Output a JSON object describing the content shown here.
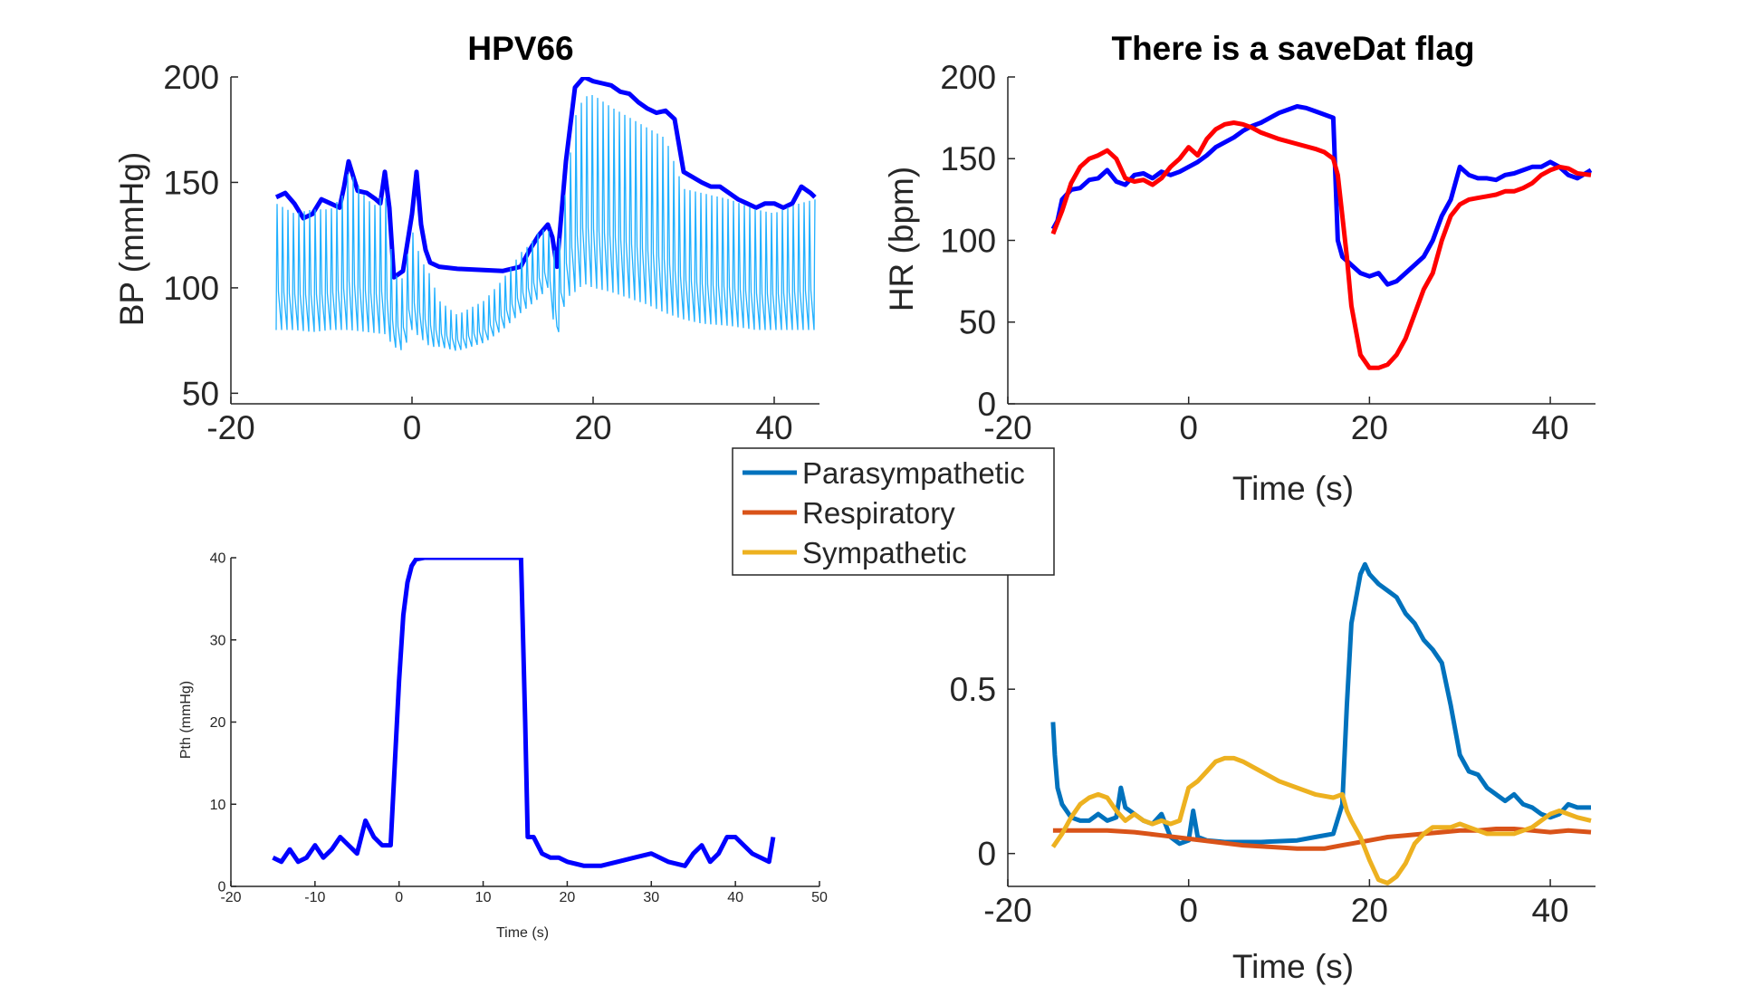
{
  "chart_data": [
    {
      "type": "line",
      "title": "HPV66",
      "xlabel": "",
      "ylabel": "BP (mmHg)",
      "xlim": [
        -20,
        45
      ],
      "ylim": [
        45,
        200
      ],
      "xticks": [
        -20,
        0,
        20,
        40
      ],
      "yticks": [
        50,
        100,
        150,
        200
      ],
      "colors": {
        "envelope": "#0000ff",
        "waveform": "#21b0ff"
      },
      "series": [
        {
          "key": "envelope",
          "x": [
            -15,
            -14,
            -13,
            -12,
            -11,
            -10,
            -9,
            -8,
            -7.5,
            -7,
            -6,
            -5,
            -4,
            -3.5,
            -3,
            -2.5,
            -2,
            -1,
            0,
            0.5,
            1,
            1.5,
            2,
            3,
            5,
            10,
            12,
            13,
            14,
            15,
            15.5,
            16,
            17,
            18,
            19,
            20,
            21,
            22,
            23,
            24,
            25,
            26,
            27,
            28,
            29,
            30,
            32,
            33,
            34,
            35,
            36,
            37,
            38,
            39,
            40,
            41,
            42,
            43,
            44,
            44.5
          ],
          "y": [
            143,
            145,
            140,
            133,
            135,
            142,
            140,
            138,
            148,
            160,
            146,
            145,
            142,
            140,
            155,
            138,
            105,
            108,
            135,
            155,
            130,
            118,
            112,
            110,
            109,
            108,
            110,
            118,
            125,
            130,
            124,
            110,
            160,
            195,
            200,
            198,
            197,
            196,
            193,
            192,
            188,
            185,
            183,
            184,
            180,
            155,
            150,
            148,
            148,
            145,
            142,
            140,
            138,
            140,
            140,
            138,
            140,
            148,
            145,
            143
          ]
        },
        {
          "key": "waveform_upper",
          "x": [
            -15,
            -13,
            -11,
            -9,
            -7.5,
            -7,
            -5,
            -4,
            -3,
            -2,
            -1,
            0,
            1,
            2,
            3,
            5,
            8,
            10,
            12,
            13,
            14,
            15,
            16,
            17,
            18,
            19,
            20,
            22,
            24,
            26,
            28,
            30,
            32,
            35,
            38,
            40,
            42,
            44.5
          ],
          "y": [
            143,
            138,
            140,
            140,
            148,
            160,
            145,
            142,
            150,
            108,
            106,
            130,
            115,
            108,
            95,
            88,
            95,
            105,
            118,
            122,
            128,
            130,
            115,
            150,
            185,
            195,
            196,
            190,
            185,
            180,
            175,
            150,
            148,
            145,
            140,
            138,
            142,
            145
          ]
        },
        {
          "key": "waveform_lower",
          "x": [
            -15,
            -13,
            -11,
            -9,
            -7,
            -5,
            -3,
            -2,
            -1,
            0,
            1,
            2,
            3,
            5,
            8,
            10,
            12,
            14,
            15,
            16,
            17,
            18,
            19,
            20,
            22,
            24,
            26,
            28,
            30,
            32,
            35,
            38,
            40,
            42,
            44.5
          ],
          "y": [
            80,
            80,
            79,
            80,
            80,
            79,
            78,
            72,
            70,
            80,
            76,
            72,
            72,
            70,
            74,
            80,
            88,
            95,
            100,
            75,
            95,
            98,
            102,
            100,
            98,
            95,
            92,
            88,
            85,
            83,
            82,
            80,
            80,
            80,
            80
          ]
        }
      ]
    },
    {
      "type": "line",
      "title": "There is a saveDat flag",
      "xlabel": "Time (s)",
      "ylabel": "HR (bpm)",
      "xlim": [
        -20,
        45
      ],
      "ylim": [
        0,
        200
      ],
      "xticks": [
        -20,
        0,
        20,
        40
      ],
      "yticks": [
        0,
        50,
        100,
        150,
        200
      ],
      "colors": {
        "blue": "#0000ff",
        "red": "#ff0000"
      },
      "series": [
        {
          "key": "blue",
          "x": [
            -15,
            -14.5,
            -14,
            -13,
            -12,
            -11,
            -10,
            -9,
            -8,
            -7,
            -6,
            -5,
            -4,
            -3,
            -2,
            -1,
            0,
            1,
            2,
            3,
            4,
            5,
            6,
            7,
            8,
            9,
            10,
            11,
            12,
            13,
            14,
            15,
            16,
            16.5,
            17,
            18,
            19,
            20,
            21,
            22,
            23,
            24,
            25,
            26,
            27,
            28,
            29,
            30,
            31,
            32,
            33,
            34,
            35,
            36,
            37,
            38,
            39,
            40,
            41,
            42,
            43,
            44.5
          ],
          "y": [
            107,
            112,
            125,
            131,
            132,
            137,
            138,
            143,
            136,
            134,
            140,
            141,
            138,
            142,
            140,
            142,
            145,
            148,
            152,
            157,
            160,
            163,
            167,
            170,
            172,
            175,
            178,
            180,
            182,
            181,
            179,
            177,
            175,
            100,
            90,
            85,
            80,
            78,
            80,
            73,
            75,
            80,
            85,
            90,
            100,
            115,
            125,
            145,
            140,
            138,
            138,
            137,
            140,
            141,
            143,
            145,
            145,
            148,
            145,
            140,
            138,
            143
          ]
        },
        {
          "key": "red",
          "x": [
            -15,
            -14,
            -13,
            -12,
            -11,
            -10,
            -9,
            -8,
            -7,
            -6,
            -5,
            -4,
            -3,
            -2,
            -1,
            0,
            1,
            2,
            3,
            4,
            5,
            6,
            7,
            8,
            9,
            10,
            12,
            14,
            15,
            16,
            16.5,
            17,
            17.5,
            18,
            19,
            20,
            21,
            22,
            23,
            24,
            25,
            26,
            27,
            28,
            29,
            30,
            31,
            32,
            33,
            34,
            35,
            36,
            37,
            38,
            39,
            40,
            41,
            42,
            43,
            44.5
          ],
          "y": [
            104,
            118,
            135,
            145,
            150,
            152,
            155,
            150,
            138,
            136,
            137,
            134,
            138,
            145,
            150,
            157,
            152,
            162,
            168,
            171,
            172,
            171,
            169,
            166,
            164,
            162,
            159,
            156,
            154,
            150,
            140,
            115,
            90,
            60,
            30,
            22,
            22,
            24,
            30,
            40,
            55,
            70,
            80,
            100,
            115,
            122,
            125,
            126,
            127,
            128,
            130,
            130,
            132,
            135,
            140,
            143,
            145,
            144,
            141,
            140
          ]
        }
      ]
    },
    {
      "type": "line",
      "title": "",
      "xlabel": "Time (s)",
      "ylabel": "Pth (mmHg)",
      "xlim": [
        -20,
        50
      ],
      "ylim": [
        0,
        40
      ],
      "xticks": [
        -20,
        -10,
        0,
        10,
        20,
        30,
        40,
        50
      ],
      "yticks": [
        0,
        10,
        20,
        30,
        40
      ],
      "colors": {
        "line": "#0000ff"
      },
      "series": [
        {
          "key": "line",
          "x": [
            -15,
            -14,
            -13,
            -12,
            -11,
            -10,
            -9,
            -8,
            -7,
            -6,
            -5,
            -4,
            -3,
            -2,
            -1,
            0,
            0.5,
            1,
            1.5,
            2,
            3,
            5,
            10,
            14.5,
            15,
            15.3,
            16,
            17,
            18,
            19,
            20,
            22,
            24,
            26,
            28,
            30,
            32,
            34,
            35,
            36,
            37,
            38,
            39,
            40,
            41,
            42,
            43,
            44,
            44.5
          ],
          "y": [
            3.5,
            3,
            4.5,
            3,
            3.5,
            5,
            3.5,
            4.5,
            6,
            5,
            4,
            8,
            6,
            5,
            5,
            25,
            33,
            37,
            39,
            39.8,
            40,
            40,
            40,
            40,
            20,
            6,
            6,
            4,
            3.5,
            3.5,
            3,
            2.5,
            2.5,
            3,
            3.5,
            4,
            3,
            2.5,
            4,
            5,
            3,
            4,
            6,
            6,
            5,
            4,
            3.5,
            3,
            6
          ]
        }
      ]
    },
    {
      "type": "line",
      "title": "",
      "xlabel": "Time (s)",
      "ylabel": "",
      "xlim": [
        -20,
        45
      ],
      "ylim": [
        -0.1,
        0.9
      ],
      "xticks": [
        -20,
        0,
        20,
        40
      ],
      "yticks": [
        0,
        0.5
      ],
      "legend": {
        "position": "top-left",
        "items": [
          "Parasympathetic",
          "Respiratory",
          "Sympathetic"
        ]
      },
      "colors": {
        "Parasympathetic": "#0072bd",
        "Respiratory": "#d95319",
        "Sympathetic": "#edb120"
      },
      "series": [
        {
          "name": "Parasympathetic",
          "x": [
            -15,
            -14.8,
            -14.5,
            -14,
            -13,
            -12,
            -11,
            -10,
            -9,
            -8,
            -7.5,
            -7,
            -6,
            -5,
            -4,
            -3,
            -2,
            -1,
            0,
            0.5,
            1,
            2,
            4,
            8,
            12,
            14,
            16,
            17,
            17.5,
            18,
            19,
            19.5,
            20,
            21,
            22,
            23,
            24,
            25,
            26,
            27,
            28,
            29,
            30,
            31,
            32,
            33,
            34,
            35,
            36,
            37,
            38,
            39,
            40,
            41,
            42,
            43,
            44.5
          ],
          "y": [
            0.4,
            0.3,
            0.2,
            0.15,
            0.11,
            0.1,
            0.1,
            0.12,
            0.1,
            0.11,
            0.2,
            0.14,
            0.12,
            0.1,
            0.09,
            0.12,
            0.05,
            0.03,
            0.04,
            0.13,
            0.05,
            0.04,
            0.035,
            0.035,
            0.04,
            0.05,
            0.06,
            0.15,
            0.45,
            0.7,
            0.85,
            0.88,
            0.85,
            0.82,
            0.8,
            0.78,
            0.73,
            0.7,
            0.65,
            0.62,
            0.58,
            0.45,
            0.3,
            0.25,
            0.24,
            0.2,
            0.18,
            0.16,
            0.18,
            0.15,
            0.14,
            0.12,
            0.11,
            0.12,
            0.15,
            0.14,
            0.14
          ]
        },
        {
          "name": "Respiratory",
          "x": [
            -15,
            -12,
            -9,
            -6,
            -3,
            0,
            3,
            6,
            9,
            12,
            15,
            16,
            17,
            18,
            20,
            22,
            24,
            26,
            28,
            30,
            32,
            34,
            36,
            38,
            40,
            42,
            44.5
          ],
          "y": [
            0.07,
            0.07,
            0.07,
            0.065,
            0.055,
            0.045,
            0.035,
            0.025,
            0.02,
            0.015,
            0.015,
            0.02,
            0.025,
            0.03,
            0.04,
            0.05,
            0.055,
            0.06,
            0.065,
            0.07,
            0.07,
            0.075,
            0.075,
            0.07,
            0.065,
            0.07,
            0.065
          ]
        },
        {
          "name": "Sympathetic",
          "x": [
            -15,
            -14,
            -13,
            -12,
            -11,
            -10,
            -9,
            -8,
            -7,
            -6,
            -5,
            -4,
            -3,
            -2,
            -1,
            0,
            1,
            2,
            3,
            4,
            5,
            6,
            8,
            10,
            12,
            14,
            16,
            17,
            17.5,
            18,
            19,
            20,
            21,
            22,
            23,
            24,
            25,
            26,
            27,
            28,
            29,
            30,
            31,
            32,
            33,
            34,
            35,
            36,
            37,
            38,
            39,
            40,
            41,
            42,
            43,
            44.5
          ],
          "y": [
            0.02,
            0.06,
            0.11,
            0.15,
            0.17,
            0.18,
            0.17,
            0.13,
            0.1,
            0.12,
            0.1,
            0.09,
            0.1,
            0.09,
            0.1,
            0.2,
            0.22,
            0.25,
            0.28,
            0.29,
            0.29,
            0.28,
            0.25,
            0.22,
            0.2,
            0.18,
            0.17,
            0.18,
            0.13,
            0.1,
            0.05,
            -0.02,
            -0.08,
            -0.09,
            -0.07,
            -0.03,
            0.03,
            0.06,
            0.08,
            0.08,
            0.08,
            0.09,
            0.08,
            0.07,
            0.06,
            0.06,
            0.06,
            0.06,
            0.07,
            0.08,
            0.1,
            0.12,
            0.13,
            0.12,
            0.11,
            0.1
          ]
        }
      ]
    }
  ]
}
